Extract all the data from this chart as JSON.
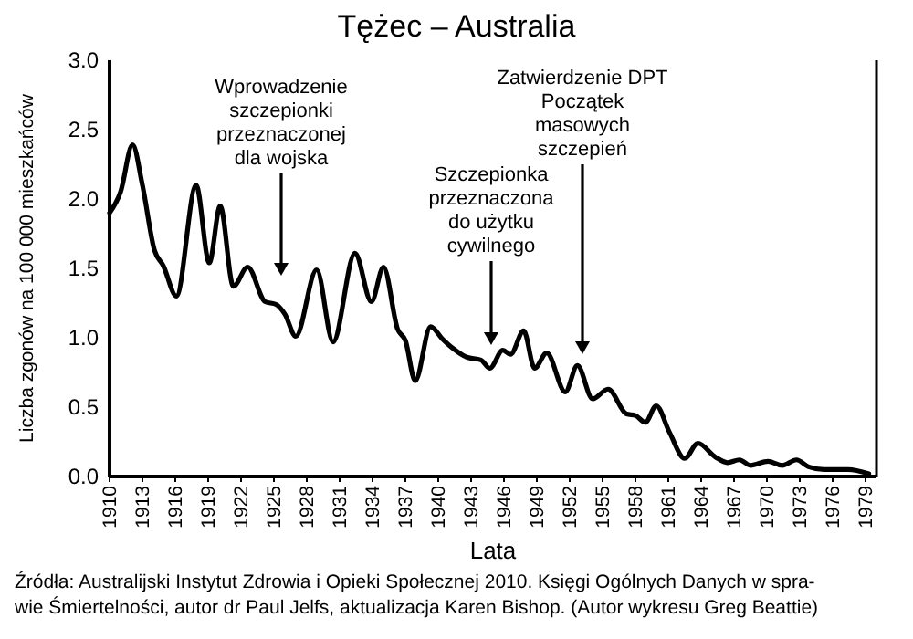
{
  "chart_data": {
    "type": "line",
    "title": "Tężec – Australia",
    "xlabel": "Lata",
    "ylabel": "Liczba zgonów na 100 000 mieszkańców",
    "x": [
      1910,
      1911,
      1912.1,
      1913,
      1914.1,
      1914.9,
      1916.1,
      1917.9,
      1919.1,
      1920.1,
      1921.3,
      1922.6,
      1924.2,
      1925.2,
      1926,
      1927,
      1928.9,
      1930.4,
      1932.4,
      1933.9,
      1935,
      1936.3,
      1937,
      1937.9,
      1939.3,
      1940.4,
      1941.4,
      1942.6,
      1943.9,
      1944.7,
      1945.9,
      1946.6,
      1947.8,
      1948.8,
      1949.9,
      1951.6,
      1952.7,
      1954.1,
      1955.5,
      1957.2,
      1958,
      1958.9,
      1959.9,
      1961.1,
      1962.5,
      1963.7,
      1965.3,
      1966.4,
      1967.5,
      1968.5,
      1970.1,
      1971.4,
      1972.7,
      1973.8,
      1975.2,
      1977.4,
      1979.3
    ],
    "series": [
      {
        "color": "#000000",
        "values": [
          1.9,
          2.05,
          2.39,
          2.1,
          1.63,
          1.52,
          1.3,
          2.1,
          1.54,
          1.95,
          1.37,
          1.51,
          1.26,
          1.24,
          1.17,
          1.01,
          1.49,
          0.97,
          1.61,
          1.26,
          1.51,
          1.06,
          0.98,
          0.69,
          1.08,
          0.99,
          0.92,
          0.86,
          0.84,
          0.78,
          0.91,
          0.88,
          1.05,
          0.78,
          0.89,
          0.61,
          0.8,
          0.56,
          0.63,
          0.45,
          0.44,
          0.39,
          0.51,
          0.32,
          0.13,
          0.24,
          0.14,
          0.1,
          0.12,
          0.08,
          0.11,
          0.08,
          0.12,
          0.07,
          0.05,
          0.05,
          0.02
        ]
      }
    ],
    "xlim": [
      1910,
      1980
    ],
    "ylim": [
      0,
      3
    ],
    "xticks": [
      1910,
      1913,
      1916,
      1919,
      1922,
      1925,
      1928,
      1931,
      1934,
      1937,
      1940,
      1943,
      1946,
      1949,
      1952,
      1955,
      1958,
      1961,
      1964,
      1967,
      1970,
      1973,
      1976,
      1979
    ],
    "yticks": [
      {
        "value": 0,
        "label": "0.0"
      },
      {
        "value": 0.5,
        "label": "0.5"
      },
      {
        "value": 1,
        "label": "1.0"
      },
      {
        "value": 1.5,
        "label": "1.5"
      },
      {
        "value": 2,
        "label": "2.0"
      },
      {
        "value": 2.5,
        "label": "2.5"
      },
      {
        "value": 3,
        "label": "3.0"
      }
    ],
    "grid": false,
    "marker": "none",
    "line_style": "solid",
    "annotations": [
      "Wprowadzenie\nszczepionki\nprzeznaczonej\ndla wojska",
      "Szczepionka\nprzeznaczona\ndo użytku\ncywilnego",
      "Zatwierdzenie DPT\nPoczątek\nmasowych\nszczepień",
      "Źródła: Australijski Instytut Zdrowia i Opieki Społecznej 2010. Księgi Ogólnych Danych w spra-\nwie Śmiertelności, autor dr Paul Jelfs, aktualizacja Karen Bishop. (Autor wykresu Greg Beattie)"
    ]
  }
}
